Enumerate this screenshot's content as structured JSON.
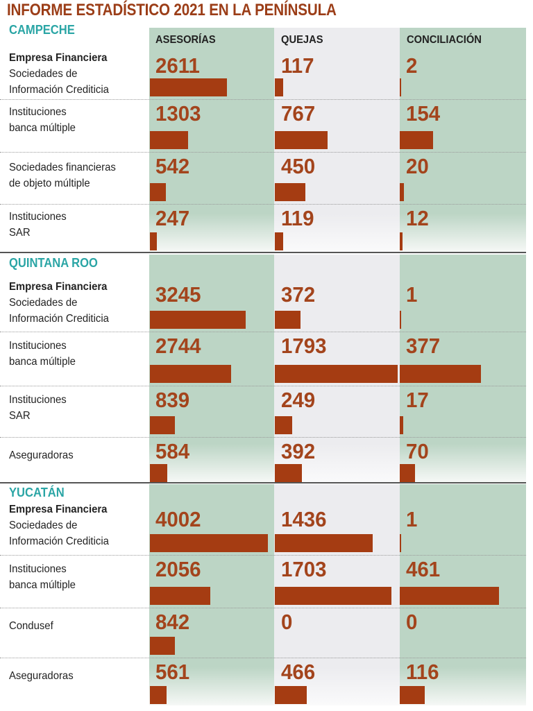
{
  "title": "INFORME ESTADÍSTICO 2021 EN LA PENÍNSULA",
  "columns": [
    "ASESORÍAS",
    "QUEJAS",
    "CONCILIACIÓN"
  ],
  "colors": {
    "accent_green": "#bcd5c5",
    "neutral_grey": "#ececef",
    "bar": "#a53c12",
    "number": "#a3441c",
    "state": "#2aa5a5",
    "title": "#9b3d17"
  },
  "chart_data": {
    "type": "bar",
    "title": "INFORME ESTADÍSTICO 2021 EN LA PENÍNSULA",
    "series_names": [
      "ASESORÍAS",
      "QUEJAS",
      "CONCILIACIÓN"
    ],
    "sections": [
      {
        "state": "CAMPECHE",
        "rows": [
          {
            "group": "Empresa Financiera",
            "label": [
              "Sociedades de",
              "Información Crediticia"
            ],
            "values": [
              2611,
              117,
              2
            ]
          },
          {
            "label": [
              "Instituciones",
              "banca múltiple"
            ],
            "values": [
              1303,
              767,
              154
            ]
          },
          {
            "label": [
              "Sociedades financieras",
              "de objeto múltiple"
            ],
            "values": [
              542,
              450,
              20
            ]
          },
          {
            "label": [
              "Instituciones",
              "SAR"
            ],
            "values": [
              247,
              119,
              12
            ]
          }
        ]
      },
      {
        "state": "QUINTANA ROO",
        "rows": [
          {
            "group": "Empresa Financiera",
            "label": [
              "Sociedades de",
              "Información Crediticia"
            ],
            "values": [
              3245,
              372,
              1
            ]
          },
          {
            "label": [
              "Instituciones",
              "banca múltiple"
            ],
            "values": [
              2744,
              1793,
              377
            ]
          },
          {
            "label": [
              "Instituciones",
              "SAR"
            ],
            "values": [
              839,
              249,
              17
            ]
          },
          {
            "label": [
              "Aseguradoras"
            ],
            "values": [
              584,
              392,
              70
            ]
          }
        ]
      },
      {
        "state": "YUCATÁN",
        "rows": [
          {
            "group": "Empresa Financiera",
            "label": [
              "Sociedades de",
              "Información Crediticia"
            ],
            "values": [
              4002,
              1436,
              1
            ]
          },
          {
            "label": [
              "Instituciones",
              "banca múltiple"
            ],
            "values": [
              2056,
              1703,
              461
            ]
          },
          {
            "label": [
              "Condusef"
            ],
            "values": [
              842,
              0,
              0
            ]
          },
          {
            "label": [
              "Aseguradoras"
            ],
            "values": [
              561,
              466,
              116
            ]
          }
        ]
      }
    ]
  }
}
